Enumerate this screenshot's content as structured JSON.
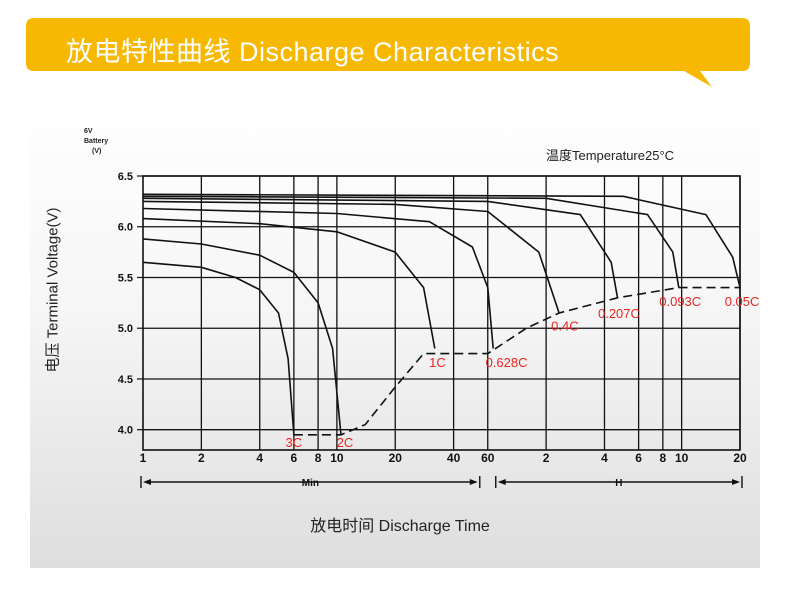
{
  "banner": {
    "title": "放电特性曲线 Discharge Characteristics",
    "color": "#f6b800"
  },
  "chart_data": {
    "type": "line",
    "ylabel": "电压 Terminal Voltage(V)",
    "xlabel": "放电时间 Discharge Time",
    "annotation": "温度Temperature25°C",
    "y_unit_lines": [
      "6V",
      "Battery",
      "(V)"
    ],
    "ylim": [
      3.8,
      6.5
    ],
    "y_ticks": [
      "6.5",
      "6.0",
      "5.5",
      "5.0",
      "4.5",
      "4.0"
    ],
    "x_scale": "log",
    "x_unit": "minutes",
    "x_ticks": [
      {
        "label": "1",
        "min": 1
      },
      {
        "label": "2",
        "min": 2
      },
      {
        "label": "4",
        "min": 4
      },
      {
        "label": "6",
        "min": 6
      },
      {
        "label": "8",
        "min": 8
      },
      {
        "label": "10",
        "min": 10
      },
      {
        "label": "20",
        "min": 20
      },
      {
        "label": "40",
        "min": 40
      },
      {
        "label": "60",
        "min": 60
      },
      {
        "label": "2",
        "min": 120
      },
      {
        "label": "4",
        "min": 240
      },
      {
        "label": "6",
        "min": 360
      },
      {
        "label": "8",
        "min": 480
      },
      {
        "label": "10",
        "min": 600
      },
      {
        "label": "20",
        "min": 1200
      }
    ],
    "ranges": [
      {
        "label": "Min",
        "from": 1,
        "to": 60
      },
      {
        "label": "H",
        "from": 60,
        "to": 1200
      }
    ],
    "grid": true,
    "series": [
      {
        "name": "3C",
        "points": [
          [
            1,
            5.65
          ],
          [
            2,
            5.6
          ],
          [
            3,
            5.5
          ],
          [
            4,
            5.38
          ],
          [
            5,
            5.15
          ],
          [
            5.6,
            4.7
          ],
          [
            6,
            3.95
          ]
        ]
      },
      {
        "name": "2C",
        "points": [
          [
            1,
            5.88
          ],
          [
            2,
            5.83
          ],
          [
            4,
            5.72
          ],
          [
            6,
            5.55
          ],
          [
            8,
            5.25
          ],
          [
            9.5,
            4.8
          ],
          [
            10.5,
            3.95
          ]
        ]
      },
      {
        "name": "1C",
        "points": [
          [
            1,
            6.08
          ],
          [
            4,
            6.03
          ],
          [
            10,
            5.95
          ],
          [
            20,
            5.75
          ],
          [
            28,
            5.4
          ],
          [
            32,
            4.8
          ]
        ]
      },
      {
        "name": "0.628C",
        "points": [
          [
            1,
            6.18
          ],
          [
            10,
            6.13
          ],
          [
            30,
            6.05
          ],
          [
            50,
            5.8
          ],
          [
            60,
            5.4
          ],
          [
            64,
            4.8
          ]
        ]
      },
      {
        "name": "0.4C",
        "points": [
          [
            1,
            6.25
          ],
          [
            20,
            6.22
          ],
          [
            60,
            6.15
          ],
          [
            110,
            5.75
          ],
          [
            140,
            5.15
          ]
        ]
      },
      {
        "name": "0.207C",
        "points": [
          [
            1,
            6.28
          ],
          [
            60,
            6.25
          ],
          [
            180,
            6.12
          ],
          [
            260,
            5.65
          ],
          [
            280,
            5.3
          ]
        ]
      },
      {
        "name": "0.093C",
        "points": [
          [
            1,
            6.3
          ],
          [
            120,
            6.28
          ],
          [
            400,
            6.12
          ],
          [
            540,
            5.75
          ],
          [
            580,
            5.4
          ]
        ]
      },
      {
        "name": "0.05C",
        "points": [
          [
            1,
            6.32
          ],
          [
            300,
            6.3
          ],
          [
            800,
            6.12
          ],
          [
            1100,
            5.7
          ],
          [
            1200,
            5.4
          ]
        ]
      }
    ],
    "cutoff_curve": [
      [
        6,
        3.95
      ],
      [
        10.5,
        3.95
      ],
      [
        14,
        4.05
      ],
      [
        20,
        4.42
      ],
      [
        28,
        4.75
      ],
      [
        60,
        4.75
      ],
      [
        95,
        5.0
      ],
      [
        140,
        5.15
      ],
      [
        280,
        5.3
      ],
      [
        580,
        5.4
      ],
      [
        1200,
        5.4
      ]
    ],
    "curve_labels": [
      {
        "text": "3C",
        "x": 6,
        "y": 3.83
      },
      {
        "text": "2C",
        "x": 11,
        "y": 3.83
      },
      {
        "text": "1C",
        "x": 33,
        "y": 4.62
      },
      {
        "text": "0.628C",
        "x": 75,
        "y": 4.62
      },
      {
        "text": "0.4C",
        "x": 150,
        "y": 4.98
      },
      {
        "text": "0.207C",
        "x": 285,
        "y": 5.1
      },
      {
        "text": "0.093C",
        "x": 590,
        "y": 5.22
      },
      {
        "text": "0.05C",
        "x": 1230,
        "y": 5.22
      }
    ],
    "label_color": "#e8251f"
  }
}
